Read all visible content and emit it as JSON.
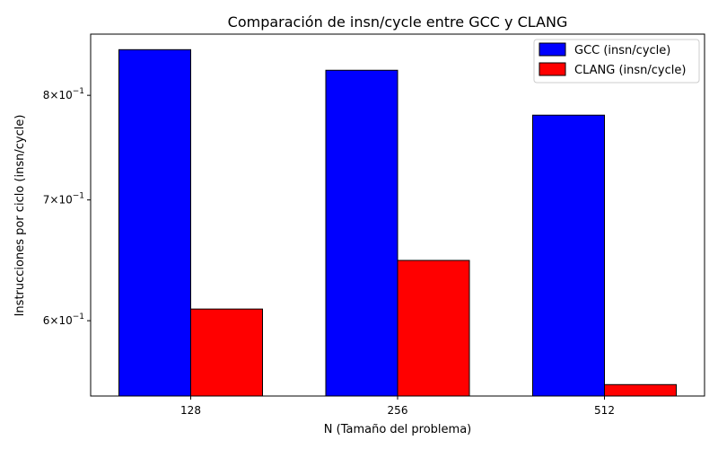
{
  "chart_data": {
    "type": "bar",
    "title": "Comparación de insn/cycle entre GCC y CLANG",
    "xlabel": "N (Tamaño del problema)",
    "ylabel": "Instrucciones por ciclo (insn/cycle)",
    "categories": [
      "128",
      "256",
      "512"
    ],
    "y_scale": "log",
    "ylim": [
      0.545,
      0.865
    ],
    "yticks": [
      {
        "value": 0.6,
        "mantissa": "6",
        "exp": "−1"
      },
      {
        "value": 0.7,
        "mantissa": "7",
        "exp": "−1"
      },
      {
        "value": 0.8,
        "mantissa": "8",
        "exp": "−1"
      }
    ],
    "series": [
      {
        "name": "GCC (insn/cycle)",
        "color": "#0000ff",
        "values": [
          0.848,
          0.826,
          0.78
        ]
      },
      {
        "name": "CLANG (insn/cycle)",
        "color": "#ff0000",
        "values": [
          0.609,
          0.648,
          0.553
        ]
      }
    ],
    "legend_position": "top-right",
    "grid": false
  }
}
